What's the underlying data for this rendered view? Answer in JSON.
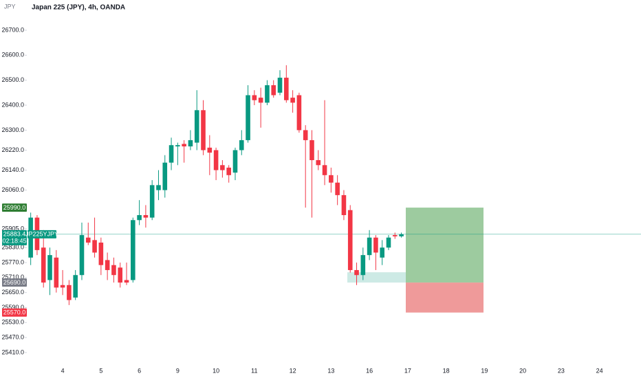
{
  "chart_data": {
    "type": "candlestick",
    "currency": "JPY",
    "title": "Japan 225 (JPY), 4h, OANDA",
    "categories": [
      null,
      null,
      null,
      null,
      null,
      "4",
      null,
      null,
      null,
      null,
      null,
      "5",
      null,
      null,
      null,
      null,
      null,
      "6",
      null,
      null,
      null,
      null,
      null,
      "9",
      null,
      null,
      null,
      null,
      null,
      "10",
      null,
      null,
      null,
      null,
      null,
      "11",
      null,
      null,
      null,
      null,
      null,
      "12",
      null,
      null,
      null,
      null,
      null,
      "13",
      null,
      null,
      null,
      null,
      null,
      "16",
      null,
      null,
      null,
      null,
      null,
      "17",
      null,
      null,
      null,
      null,
      null,
      "18",
      null,
      null,
      null,
      null,
      null,
      "19",
      null,
      null,
      null,
      null,
      null,
      "20",
      null,
      null,
      null,
      null,
      null,
      "23",
      null,
      null,
      null,
      null,
      null,
      "24",
      null,
      null,
      null,
      null,
      null,
      null
    ],
    "open": [
      25790,
      25950,
      25830,
      25700,
      25790,
      25680,
      25680,
      25630,
      25720,
      25870,
      25860,
      25850,
      25780,
      25760,
      25750,
      25700,
      25700,
      25940,
      25960,
      25950,
      26060,
      26060,
      26170,
      26235,
      26245,
      26235,
      26250,
      26380,
      26230,
      26220,
      26160,
      26150,
      26130,
      26220,
      26260,
      26440,
      26430,
      26410,
      26480,
      26450,
      26510,
      26430,
      26440,
      26300,
      26260,
      26180,
      26160,
      26120,
      26090,
      26040,
      25980,
      25740,
      25720,
      25800,
      25870,
      25790,
      25830,
      25880,
      25875,
      null,
      null,
      null,
      null,
      null,
      null,
      null,
      null,
      null,
      null,
      null,
      null,
      null,
      null,
      null,
      null,
      null,
      null,
      null,
      null,
      null,
      null,
      null,
      null,
      null,
      null,
      null,
      null,
      null,
      null,
      null,
      null,
      null,
      null,
      null,
      null,
      null
    ],
    "high": [
      25970,
      25960,
      25900,
      25830,
      25820,
      25740,
      25700,
      25740,
      25930,
      25930,
      25950,
      25870,
      25810,
      25790,
      25770,
      25770,
      25950,
      26020,
      26000,
      26100,
      26140,
      26200,
      26270,
      26250,
      26260,
      26300,
      26460,
      26420,
      26280,
      26230,
      26180,
      26160,
      26230,
      26300,
      26480,
      26460,
      26470,
      26500,
      26500,
      26540,
      26560,
      26460,
      26450,
      26320,
      26300,
      26220,
      26420,
      26150,
      26120,
      26060,
      26000,
      25770,
      25830,
      25900,
      25880,
      25860,
      25880,
      25890,
      25890,
      null,
      null,
      null,
      null,
      null,
      null,
      null,
      null,
      null,
      null,
      null,
      null,
      null,
      null,
      null,
      null,
      null,
      null,
      null,
      null,
      null,
      null,
      null,
      null,
      null,
      null,
      null,
      null,
      null,
      null,
      null,
      null,
      null,
      null,
      null,
      null,
      null
    ],
    "low": [
      25760,
      25800,
      25670,
      25640,
      25650,
      25640,
      25600,
      25620,
      25700,
      25840,
      25790,
      25720,
      25700,
      25690,
      25670,
      25680,
      25690,
      25920,
      25910,
      25940,
      26020,
      26030,
      26140,
      26160,
      26170,
      26220,
      26220,
      26200,
      26120,
      26100,
      26110,
      26090,
      26100,
      26200,
      26250,
      26400,
      26310,
      26400,
      26430,
      26440,
      26410,
      26370,
      26290,
      25990,
      25950,
      26140,
      26080,
      26050,
      26000,
      25940,
      25730,
      25680,
      25700,
      25780,
      25740,
      25760,
      25820,
      25865,
      25870,
      null,
      null,
      null,
      null,
      null,
      null,
      null,
      null,
      null,
      null,
      null,
      null,
      null,
      null,
      null,
      null,
      null,
      null,
      null,
      null,
      null,
      null,
      null,
      null,
      null,
      null,
      null,
      null,
      null,
      null,
      null,
      null,
      null,
      null,
      null,
      null,
      null
    ],
    "close": [
      25950,
      25820,
      25690,
      25800,
      25670,
      25670,
      25620,
      25720,
      25880,
      25850,
      25810,
      25760,
      25740,
      25720,
      25690,
      25690,
      25940,
      25960,
      25950,
      26080,
      26080,
      26170,
      26240,
      26240,
      26235,
      26260,
      26380,
      26220,
      26210,
      26140,
      26140,
      26120,
      26220,
      26260,
      26440,
      26420,
      26410,
      26480,
      26440,
      26510,
      26420,
      26410,
      26300,
      26260,
      26180,
      26160,
      26120,
      26090,
      26040,
      25960,
      25740,
      25720,
      25800,
      25870,
      25810,
      25830,
      25870,
      25875,
      25883.4,
      null,
      null,
      null,
      null,
      null,
      null,
      null,
      null,
      null,
      null,
      null,
      null,
      null,
      null,
      null,
      null,
      null,
      null,
      null,
      null,
      null,
      null,
      null,
      null,
      null,
      null,
      null,
      null,
      null,
      null,
      null,
      null,
      null,
      null,
      null,
      null,
      null
    ],
    "up_color": "#089981",
    "down_color": "#f23645",
    "ylim": [
      25363,
      26821
    ],
    "yticks": [
      {
        "value": 25410,
        "label": "25410.0"
      },
      {
        "value": 25470,
        "label": "25470.0"
      },
      {
        "value": 25530,
        "label": "25530.0"
      },
      {
        "value": 25590,
        "label": "25590.0"
      },
      {
        "value": 25650,
        "label": "25650.0"
      },
      {
        "value": 25710,
        "label": "25710.0"
      },
      {
        "value": 25770,
        "label": "25770.0"
      },
      {
        "value": 25830,
        "label": "25830.0"
      },
      {
        "value": 25905,
        "label": "25905.0"
      },
      {
        "value": 26060,
        "label": "26060.0"
      },
      {
        "value": 26140,
        "label": "26140.0"
      },
      {
        "value": 26220,
        "label": "26220.0"
      },
      {
        "value": 26300,
        "label": "26300.0"
      },
      {
        "value": 26400,
        "label": "26400.0"
      },
      {
        "value": 26500,
        "label": "26500.0"
      },
      {
        "value": 26600,
        "label": "26600.0"
      },
      {
        "value": 26700,
        "label": "26700.0"
      }
    ],
    "grid": false,
    "last_price": {
      "value": 25883.4,
      "label": "25883.4",
      "symbol": "JP225YJPY",
      "countdown": "02:18:45",
      "color": "#089981"
    },
    "position": {
      "target": {
        "value": 25990,
        "label": "25990.0",
        "color": "#2e7d32"
      },
      "entry": {
        "value": 25690,
        "label": "25690.0",
        "color": "#787b86"
      },
      "stop": {
        "value": 25570,
        "label": "25570.0",
        "color": "#f23645"
      }
    }
  }
}
